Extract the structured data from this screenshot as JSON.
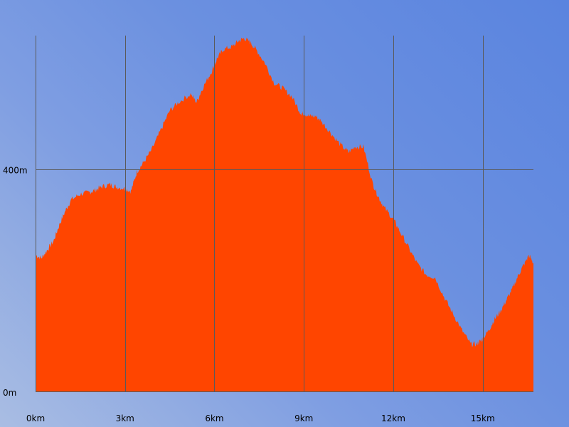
{
  "chart_data": {
    "type": "area",
    "title": "",
    "xlabel": "",
    "ylabel": "",
    "grid": true,
    "fill_color": "#ff4500",
    "x_unit": "km",
    "y_unit": "m",
    "xlim": [
      0,
      16.7
    ],
    "ylim": [
      0,
      640
    ],
    "x_ticks": [
      {
        "value": 0,
        "label": "0km"
      },
      {
        "value": 3,
        "label": "3km"
      },
      {
        "value": 6,
        "label": "6km"
      },
      {
        "value": 9,
        "label": "9km"
      },
      {
        "value": 12,
        "label": "12km"
      },
      {
        "value": 15,
        "label": "15km"
      }
    ],
    "y_ticks": [
      {
        "value": 0,
        "label": "0m"
      },
      {
        "value": 400,
        "label": "400m"
      }
    ],
    "series": [
      {
        "x": [
          0,
          0.2,
          0.4,
          0.6,
          0.8,
          1.0,
          1.2,
          1.5,
          1.8,
          2.0,
          2.2,
          2.5,
          2.7,
          3.0,
          3.2,
          3.4,
          3.6,
          3.9,
          4.2,
          4.5,
          4.8,
          5.2,
          5.4,
          5.6,
          5.9,
          6.1,
          6.3,
          6.6,
          6.8,
          7.0,
          7.2,
          7.4,
          7.7,
          8.0,
          8.3,
          8.6,
          8.9,
          9.0,
          9.2,
          9.4,
          9.6,
          9.9,
          10.2,
          10.5,
          10.7,
          11.0,
          11.3,
          11.5,
          11.7,
          12.0,
          12.2,
          12.5,
          12.8,
          13.1,
          13.4,
          13.7,
          14.0,
          14.3,
          14.6,
          14.8,
          14.9,
          15.0,
          15.2,
          15.4,
          15.6,
          15.8,
          16.0,
          16.2,
          16.4,
          16.55,
          16.7
        ],
        "values": [
          245,
          240,
          255,
          270,
          300,
          325,
          345,
          355,
          358,
          362,
          368,
          372,
          368,
          365,
          360,
          395,
          410,
          435,
          470,
          505,
          520,
          535,
          520,
          545,
          575,
          600,
          615,
          620,
          630,
          635,
          628,
          615,
          590,
          555,
          545,
          530,
          500,
          500,
          495,
          495,
          485,
          465,
          445,
          430,
          440,
          440,
          375,
          350,
          330,
          310,
          290,
          260,
          230,
          210,
          205,
          170,
          140,
          110,
          85,
          85,
          90,
          95,
          110,
          130,
          145,
          165,
          185,
          210,
          230,
          245,
          230
        ]
      }
    ]
  }
}
